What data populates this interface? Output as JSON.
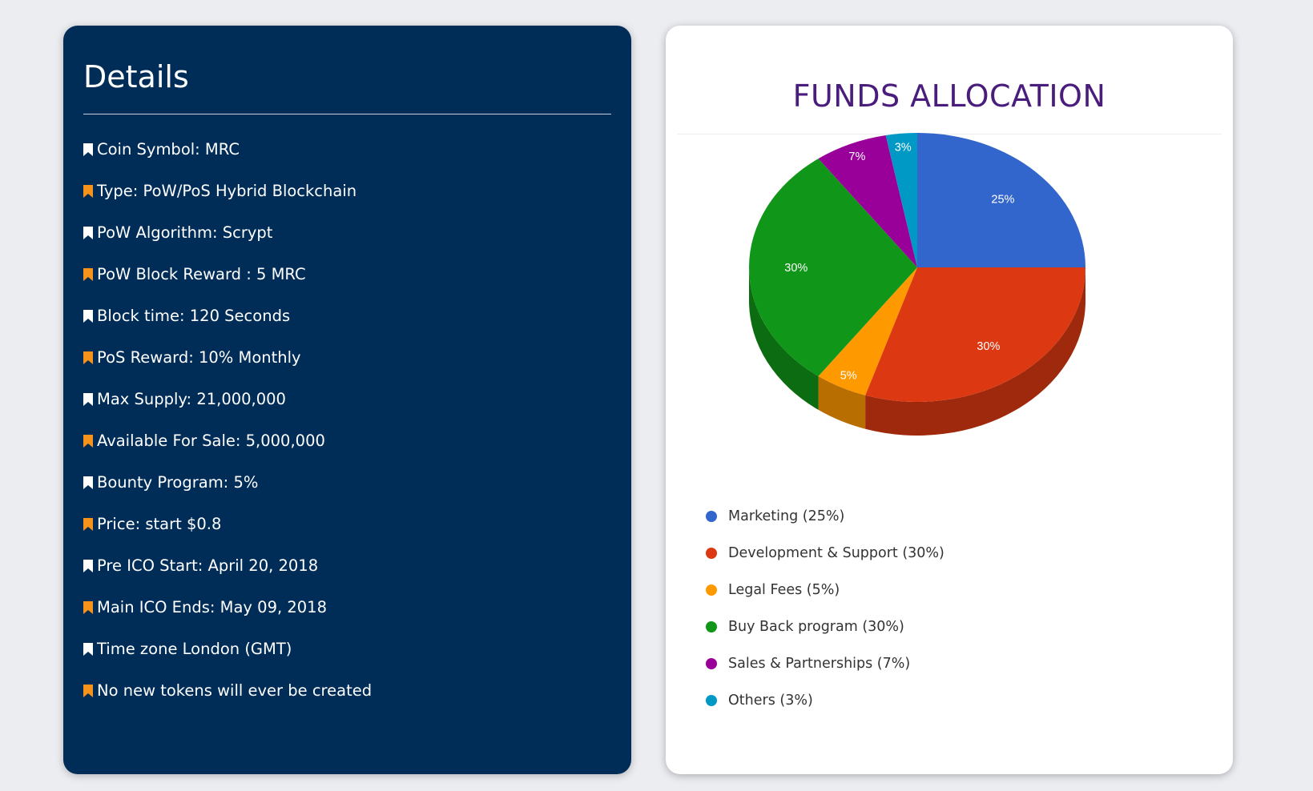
{
  "details": {
    "title": "Details",
    "items": [
      {
        "text": "Coin Symbol: MRC",
        "icon": "bookmark-icon",
        "color": "#ffffff"
      },
      {
        "text": "Type: PoW/PoS Hybrid Blockchain",
        "icon": "bookmark-icon",
        "color": "#f7931a"
      },
      {
        "text": "PoW Algorithm: Scrypt",
        "icon": "bookmark-icon",
        "color": "#ffffff"
      },
      {
        "text": "PoW Block Reward : 5 MRC",
        "icon": "bookmark-icon",
        "color": "#f7931a"
      },
      {
        "text": "Block time: 120 Seconds",
        "icon": "bookmark-icon",
        "color": "#ffffff"
      },
      {
        "text": "PoS Reward: 10% Monthly",
        "icon": "bookmark-icon",
        "color": "#f7931a"
      },
      {
        "text": "Max Supply: 21,000,000",
        "icon": "bookmark-icon",
        "color": "#ffffff"
      },
      {
        "text": "Available For Sale: 5,000,000",
        "icon": "bookmark-icon",
        "color": "#f7931a"
      },
      {
        "text": "Bounty Program: 5%",
        "icon": "bookmark-icon",
        "color": "#ffffff"
      },
      {
        "text": "Price: start $0.8",
        "icon": "bookmark-icon",
        "color": "#f7931a"
      },
      {
        "text": "Pre ICO Start: April 20, 2018",
        "icon": "bookmark-icon",
        "color": "#ffffff"
      },
      {
        "text": "Main ICO Ends: May 09, 2018",
        "icon": "bookmark-icon",
        "color": "#f7931a"
      },
      {
        "text": "Time zone London (GMT)",
        "icon": "bookmark-icon",
        "color": "#ffffff"
      },
      {
        "text": "No new tokens will ever be created",
        "icon": "bookmark-icon",
        "color": "#f7931a"
      }
    ]
  },
  "funds": {
    "title": "FUNDS ALLOCATION"
  },
  "chart_data": {
    "type": "pie",
    "style": "3d",
    "title": "FUNDS ALLOCATION",
    "legend": "bottom-left",
    "slices": [
      {
        "label": "Marketing",
        "legend": "Marketing (25%)",
        "value": 25,
        "display": "25%",
        "color": "#3366cc"
      },
      {
        "label": "Development & Support",
        "legend": "Development & Support (30%)",
        "value": 30,
        "display": "30%",
        "color": "#dc3912"
      },
      {
        "label": "Legal Fees",
        "legend": "Legal Fees (5%)",
        "value": 5,
        "display": "5%",
        "color": "#ff9900"
      },
      {
        "label": "Buy Back program",
        "legend": "Buy Back program (30%)",
        "value": 30,
        "display": "30%",
        "color": "#109618"
      },
      {
        "label": "Sales & Partnerships",
        "legend": "Sales & Partnerships (7%)",
        "value": 7,
        "display": "7%",
        "color": "#990099"
      },
      {
        "label": "Others",
        "legend": "Others (3%)",
        "value": 3,
        "display": "3%",
        "color": "#0099c6"
      }
    ]
  }
}
